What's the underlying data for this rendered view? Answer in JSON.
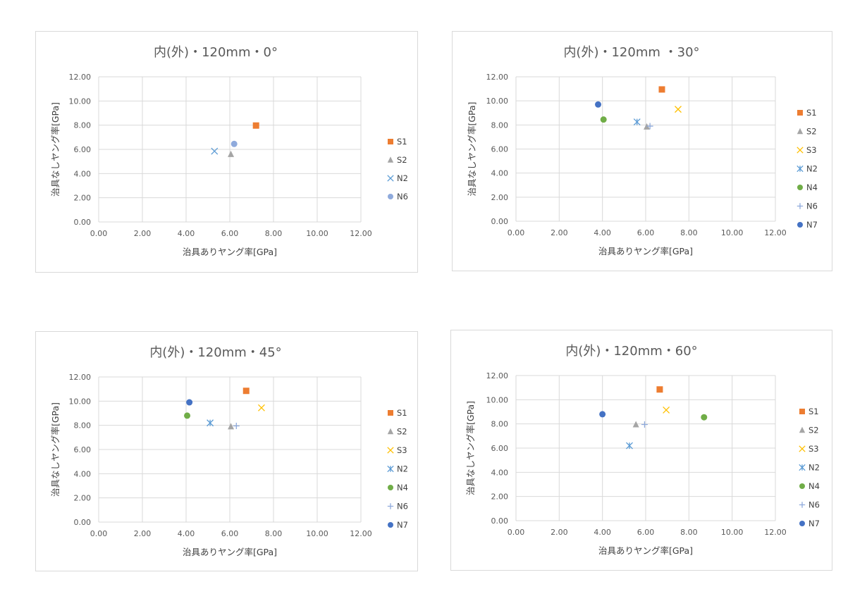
{
  "colors": {
    "S1": "#ed7d31",
    "S2": "#a5a5a5",
    "S3": "#ffc000",
    "N2": "#5b9bd5",
    "N4": "#70ad47",
    "N6": "#8faadc",
    "N7": "#4472c4"
  },
  "chart_data": [
    {
      "type": "scatter",
      "title": "内(外)・120mm・0°",
      "xlabel": "治具ありヤング率[GPa]",
      "ylabel": "治具なしヤング率[GPa]",
      "xlim": [
        0,
        12
      ],
      "ylim": [
        0,
        12
      ],
      "ticks": [
        "0.00",
        "2.00",
        "4.00",
        "6.00",
        "8.00",
        "10.00",
        "12.00"
      ],
      "grid": true,
      "legend_position": "right",
      "series": [
        {
          "name": "S1",
          "marker": "square",
          "points": [
            [
              7.2,
              7.97
            ]
          ]
        },
        {
          "name": "S2",
          "marker": "triangle",
          "points": [
            [
              6.05,
              5.6
            ]
          ]
        },
        {
          "name": "N2",
          "marker": "x",
          "points": [
            [
              5.3,
              5.85
            ]
          ]
        },
        {
          "name": "N6",
          "marker": "circle",
          "points": [
            [
              6.2,
              6.45
            ]
          ]
        }
      ]
    },
    {
      "type": "scatter",
      "title": "内(外)・120mm ・30°",
      "xlabel": "治具ありヤング率[GPa]",
      "ylabel": "治具なしヤング率[GPa]",
      "xlim": [
        0,
        12
      ],
      "ylim": [
        0,
        12
      ],
      "ticks": [
        "0.00",
        "2.00",
        "4.00",
        "6.00",
        "8.00",
        "10.00",
        "12.00"
      ],
      "grid": true,
      "legend_position": "right",
      "series": [
        {
          "name": "S1",
          "marker": "square",
          "points": [
            [
              6.75,
              10.95
            ]
          ]
        },
        {
          "name": "S2",
          "marker": "triangle",
          "points": [
            [
              6.05,
              7.85
            ]
          ]
        },
        {
          "name": "S3",
          "marker": "x",
          "points": [
            [
              7.5,
              9.3
            ]
          ]
        },
        {
          "name": "N2",
          "marker": "asterisk",
          "points": [
            [
              5.6,
              8.25
            ]
          ]
        },
        {
          "name": "N4",
          "marker": "circle",
          "points": [
            [
              4.05,
              8.45
            ]
          ]
        },
        {
          "name": "N6",
          "marker": "plus",
          "points": [
            [
              6.2,
              7.9
            ]
          ]
        },
        {
          "name": "N7",
          "marker": "circle",
          "points": [
            [
              3.8,
              9.7
            ]
          ]
        }
      ]
    },
    {
      "type": "scatter",
      "title": "内(外)・120mm・45°",
      "xlabel": "治具ありヤング率[GPa]",
      "ylabel": "治具なしヤング率[GPa]",
      "xlim": [
        0,
        12
      ],
      "ylim": [
        0,
        12
      ],
      "ticks": [
        "0.00",
        "2.00",
        "4.00",
        "6.00",
        "8.00",
        "10.00",
        "12.00"
      ],
      "grid": true,
      "legend_position": "right",
      "series": [
        {
          "name": "S1",
          "marker": "square",
          "points": [
            [
              6.75,
              10.85
            ]
          ]
        },
        {
          "name": "S2",
          "marker": "triangle",
          "points": [
            [
              6.05,
              7.9
            ]
          ]
        },
        {
          "name": "S3",
          "marker": "x",
          "points": [
            [
              7.45,
              9.45
            ]
          ]
        },
        {
          "name": "N2",
          "marker": "asterisk",
          "points": [
            [
              5.1,
              8.2
            ]
          ]
        },
        {
          "name": "N4",
          "marker": "circle",
          "points": [
            [
              4.05,
              8.8
            ]
          ]
        },
        {
          "name": "N6",
          "marker": "plus",
          "points": [
            [
              6.3,
              7.95
            ]
          ]
        },
        {
          "name": "N7",
          "marker": "circle",
          "points": [
            [
              4.15,
              9.9
            ]
          ]
        }
      ]
    },
    {
      "type": "scatter",
      "title": "内(外)・120mm・60°",
      "xlabel": "治具ありヤング率[GPa]",
      "ylabel": "治具なしヤング率[GPa]",
      "xlim": [
        0,
        12
      ],
      "ylim": [
        0,
        12
      ],
      "ticks": [
        "0.00",
        "2.00",
        "4.00",
        "6.00",
        "8.00",
        "10.00",
        "12.00"
      ],
      "grid": true,
      "legend_position": "right",
      "series": [
        {
          "name": "S1",
          "marker": "square",
          "points": [
            [
              6.65,
              10.85
            ]
          ]
        },
        {
          "name": "S2",
          "marker": "triangle",
          "points": [
            [
              5.55,
              7.95
            ]
          ]
        },
        {
          "name": "S3",
          "marker": "x",
          "points": [
            [
              6.95,
              9.15
            ]
          ]
        },
        {
          "name": "N2",
          "marker": "asterisk",
          "points": [
            [
              5.25,
              6.2
            ]
          ]
        },
        {
          "name": "N4",
          "marker": "circle",
          "points": [
            [
              8.7,
              8.55
            ]
          ]
        },
        {
          "name": "N6",
          "marker": "plus",
          "points": [
            [
              5.95,
              7.95
            ]
          ]
        },
        {
          "name": "N7",
          "marker": "circle",
          "points": [
            [
              4.0,
              8.8
            ]
          ]
        }
      ]
    }
  ]
}
